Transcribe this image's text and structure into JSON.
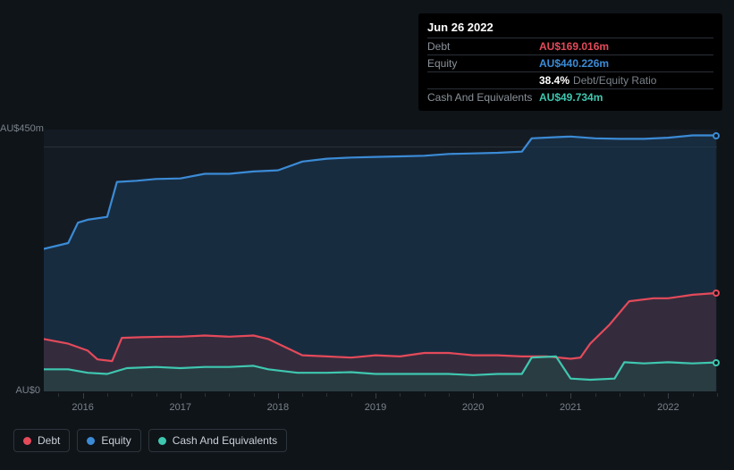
{
  "background_color": "#0f1419",
  "tooltip": {
    "title": "Jun 26 2022",
    "rows": [
      {
        "label": "Debt",
        "value": "AU$169.016m",
        "class": "debt"
      },
      {
        "label": "Equity",
        "value": "AU$440.226m",
        "class": "equity"
      },
      {
        "label": "",
        "value": "38.4%",
        "extra": "Debt/Equity Ratio",
        "class": "ratio"
      },
      {
        "label": "Cash And Equivalents",
        "value": "AU$49.734m",
        "class": "cash"
      }
    ]
  },
  "chart": {
    "type": "area",
    "plot_bg": "#151b23",
    "font_color": "#7a828a",
    "axis_fontsize": 11,
    "y": {
      "min": 0,
      "max": 450,
      "labels": [
        {
          "v": 0,
          "text": "AU$0"
        },
        {
          "v": 450,
          "text": "AU$450m"
        }
      ],
      "gridline_at": 420,
      "gridline_color": "#2b3138"
    },
    "x": {
      "min": 2015.6,
      "max": 2022.5,
      "major_ticks": [
        2016,
        2017,
        2018,
        2019,
        2020,
        2021,
        2022
      ],
      "minor_step": 0.25
    },
    "series": {
      "equity": {
        "label": "Equity",
        "stroke": "#3b8bd6",
        "fill": "#1b3a5a",
        "fill_opacity": 0.55,
        "line_width": 2.2,
        "points": [
          [
            2015.6,
            245
          ],
          [
            2015.85,
            255
          ],
          [
            2015.95,
            290
          ],
          [
            2016.05,
            295
          ],
          [
            2016.25,
            300
          ],
          [
            2016.35,
            360
          ],
          [
            2016.55,
            362
          ],
          [
            2016.75,
            365
          ],
          [
            2017.0,
            366
          ],
          [
            2017.25,
            374
          ],
          [
            2017.5,
            374
          ],
          [
            2017.75,
            378
          ],
          [
            2018.0,
            380
          ],
          [
            2018.25,
            395
          ],
          [
            2018.5,
            400
          ],
          [
            2018.75,
            402
          ],
          [
            2019.0,
            403
          ],
          [
            2019.25,
            404
          ],
          [
            2019.5,
            405
          ],
          [
            2019.75,
            408
          ],
          [
            2020.0,
            409
          ],
          [
            2020.25,
            410
          ],
          [
            2020.5,
            412
          ],
          [
            2020.6,
            435
          ],
          [
            2020.85,
            437
          ],
          [
            2021.0,
            438
          ],
          [
            2021.25,
            435
          ],
          [
            2021.5,
            434
          ],
          [
            2021.75,
            434
          ],
          [
            2022.0,
            436
          ],
          [
            2022.25,
            440
          ],
          [
            2022.49,
            440
          ]
        ]
      },
      "debt": {
        "label": "Debt",
        "stroke": "#e44a5a",
        "fill": "#6b2f39",
        "fill_opacity": 0.35,
        "line_width": 2.2,
        "points": [
          [
            2015.6,
            90
          ],
          [
            2015.85,
            82
          ],
          [
            2016.05,
            70
          ],
          [
            2016.15,
            55
          ],
          [
            2016.3,
            52
          ],
          [
            2016.4,
            92
          ],
          [
            2016.6,
            93
          ],
          [
            2016.85,
            94
          ],
          [
            2017.0,
            94
          ],
          [
            2017.25,
            96
          ],
          [
            2017.5,
            94
          ],
          [
            2017.75,
            96
          ],
          [
            2017.9,
            90
          ],
          [
            2018.25,
            62
          ],
          [
            2018.5,
            60
          ],
          [
            2018.75,
            58
          ],
          [
            2019.0,
            62
          ],
          [
            2019.25,
            60
          ],
          [
            2019.5,
            66
          ],
          [
            2019.75,
            66
          ],
          [
            2020.0,
            62
          ],
          [
            2020.25,
            62
          ],
          [
            2020.5,
            60
          ],
          [
            2020.75,
            60
          ],
          [
            2021.0,
            56
          ],
          [
            2021.1,
            58
          ],
          [
            2021.2,
            82
          ],
          [
            2021.4,
            115
          ],
          [
            2021.6,
            155
          ],
          [
            2021.85,
            160
          ],
          [
            2022.0,
            160
          ],
          [
            2022.25,
            166
          ],
          [
            2022.49,
            169
          ]
        ]
      },
      "cash": {
        "label": "Cash And Equivalents",
        "stroke": "#3fc7b0",
        "fill": "#1d4f4a",
        "fill_opacity": 0.45,
        "line_width": 2.2,
        "points": [
          [
            2015.6,
            38
          ],
          [
            2015.85,
            38
          ],
          [
            2016.05,
            32
          ],
          [
            2016.25,
            30
          ],
          [
            2016.45,
            40
          ],
          [
            2016.75,
            42
          ],
          [
            2017.0,
            40
          ],
          [
            2017.25,
            42
          ],
          [
            2017.5,
            42
          ],
          [
            2017.75,
            44
          ],
          [
            2017.9,
            38
          ],
          [
            2018.2,
            32
          ],
          [
            2018.5,
            32
          ],
          [
            2018.75,
            33
          ],
          [
            2019.0,
            30
          ],
          [
            2019.25,
            30
          ],
          [
            2019.5,
            30
          ],
          [
            2019.75,
            30
          ],
          [
            2020.0,
            28
          ],
          [
            2020.25,
            30
          ],
          [
            2020.5,
            30
          ],
          [
            2020.6,
            58
          ],
          [
            2020.85,
            60
          ],
          [
            2021.0,
            22
          ],
          [
            2021.2,
            20
          ],
          [
            2021.45,
            22
          ],
          [
            2021.55,
            50
          ],
          [
            2021.75,
            48
          ],
          [
            2022.0,
            50
          ],
          [
            2022.25,
            48
          ],
          [
            2022.49,
            49.7
          ]
        ]
      }
    },
    "end_dots": [
      {
        "series": "equity",
        "color": "#3b8bd6"
      },
      {
        "series": "debt",
        "color": "#e44a5a"
      },
      {
        "series": "cash",
        "color": "#3fc7b0"
      }
    ]
  },
  "legend": [
    {
      "label": "Debt",
      "color": "#e44a5a"
    },
    {
      "label": "Equity",
      "color": "#3b8bd6"
    },
    {
      "label": "Cash And Equivalents",
      "color": "#3fc7b0"
    }
  ]
}
